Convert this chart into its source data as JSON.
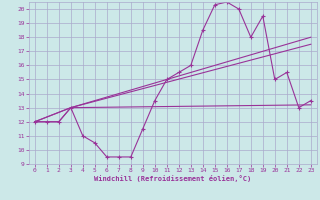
{
  "xlabel": "Windchill (Refroidissement éolien,°C)",
  "background_color": "#cce8e8",
  "grid_color": "#aaaacc",
  "line_color": "#993399",
  "xlim": [
    -0.5,
    23.5
  ],
  "ylim": [
    9,
    20.5
  ],
  "xticks": [
    0,
    1,
    2,
    3,
    4,
    5,
    6,
    7,
    8,
    9,
    10,
    11,
    12,
    13,
    14,
    15,
    16,
    17,
    18,
    19,
    20,
    21,
    22,
    23
  ],
  "yticks": [
    9,
    10,
    11,
    12,
    13,
    14,
    15,
    16,
    17,
    18,
    19,
    20
  ],
  "series1_x": [
    0,
    1,
    2,
    3,
    4,
    5,
    6,
    7,
    8,
    9,
    10,
    11,
    12,
    13,
    14,
    15,
    16,
    17,
    18,
    19,
    20,
    21,
    22,
    23
  ],
  "series1_y": [
    12,
    12,
    12,
    13,
    11,
    10.5,
    9.5,
    9.5,
    9.5,
    11.5,
    13.5,
    15,
    15.5,
    16,
    18.5,
    20.3,
    20.5,
    20,
    18,
    19.5,
    15,
    15.5,
    13,
    13.5
  ],
  "series2_x": [
    0,
    2,
    3,
    23
  ],
  "series2_y": [
    12,
    12,
    13,
    13.2
  ],
  "series3_x": [
    0,
    3,
    23
  ],
  "series3_y": [
    12,
    13,
    18
  ],
  "series4_x": [
    0,
    3,
    23
  ],
  "series4_y": [
    12,
    13,
    17.5
  ]
}
